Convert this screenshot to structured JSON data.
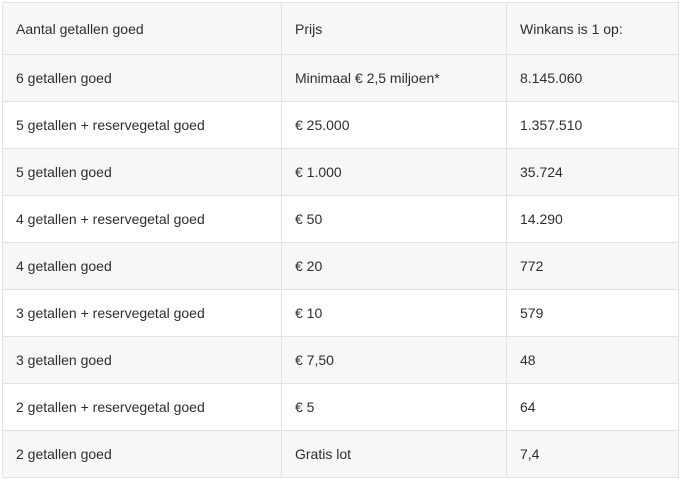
{
  "colors": {
    "row_stripe": "#f7f7f7",
    "row_plain": "#ffffff",
    "border": "#e2e2e2",
    "text": "#2e2e2e",
    "page_background": "#ffffff"
  },
  "table": {
    "headers": [
      "Aantal getallen goed",
      "Prijs",
      "Winkans is 1 op:"
    ],
    "rows": [
      [
        "6 getallen goed",
        "Minimaal € 2,5 miljoen*",
        "8.145.060"
      ],
      [
        "5 getallen + reservegetal goed",
        "€ 25.000",
        "1.357.510"
      ],
      [
        "5 getallen goed",
        "€ 1.000",
        "35.724"
      ],
      [
        "4 getallen + reservegetal goed",
        "€ 50",
        "14.290"
      ],
      [
        "4 getallen goed",
        "€ 20",
        "772"
      ],
      [
        "3 getallen + reservegetal goed",
        "€ 10",
        "579"
      ],
      [
        "3 getallen goed",
        "€ 7,50",
        "48"
      ],
      [
        "2 getallen + reservegetal goed",
        "€ 5",
        "64"
      ],
      [
        "2 getallen goed",
        "Gratis lot",
        "7,4"
      ]
    ]
  }
}
